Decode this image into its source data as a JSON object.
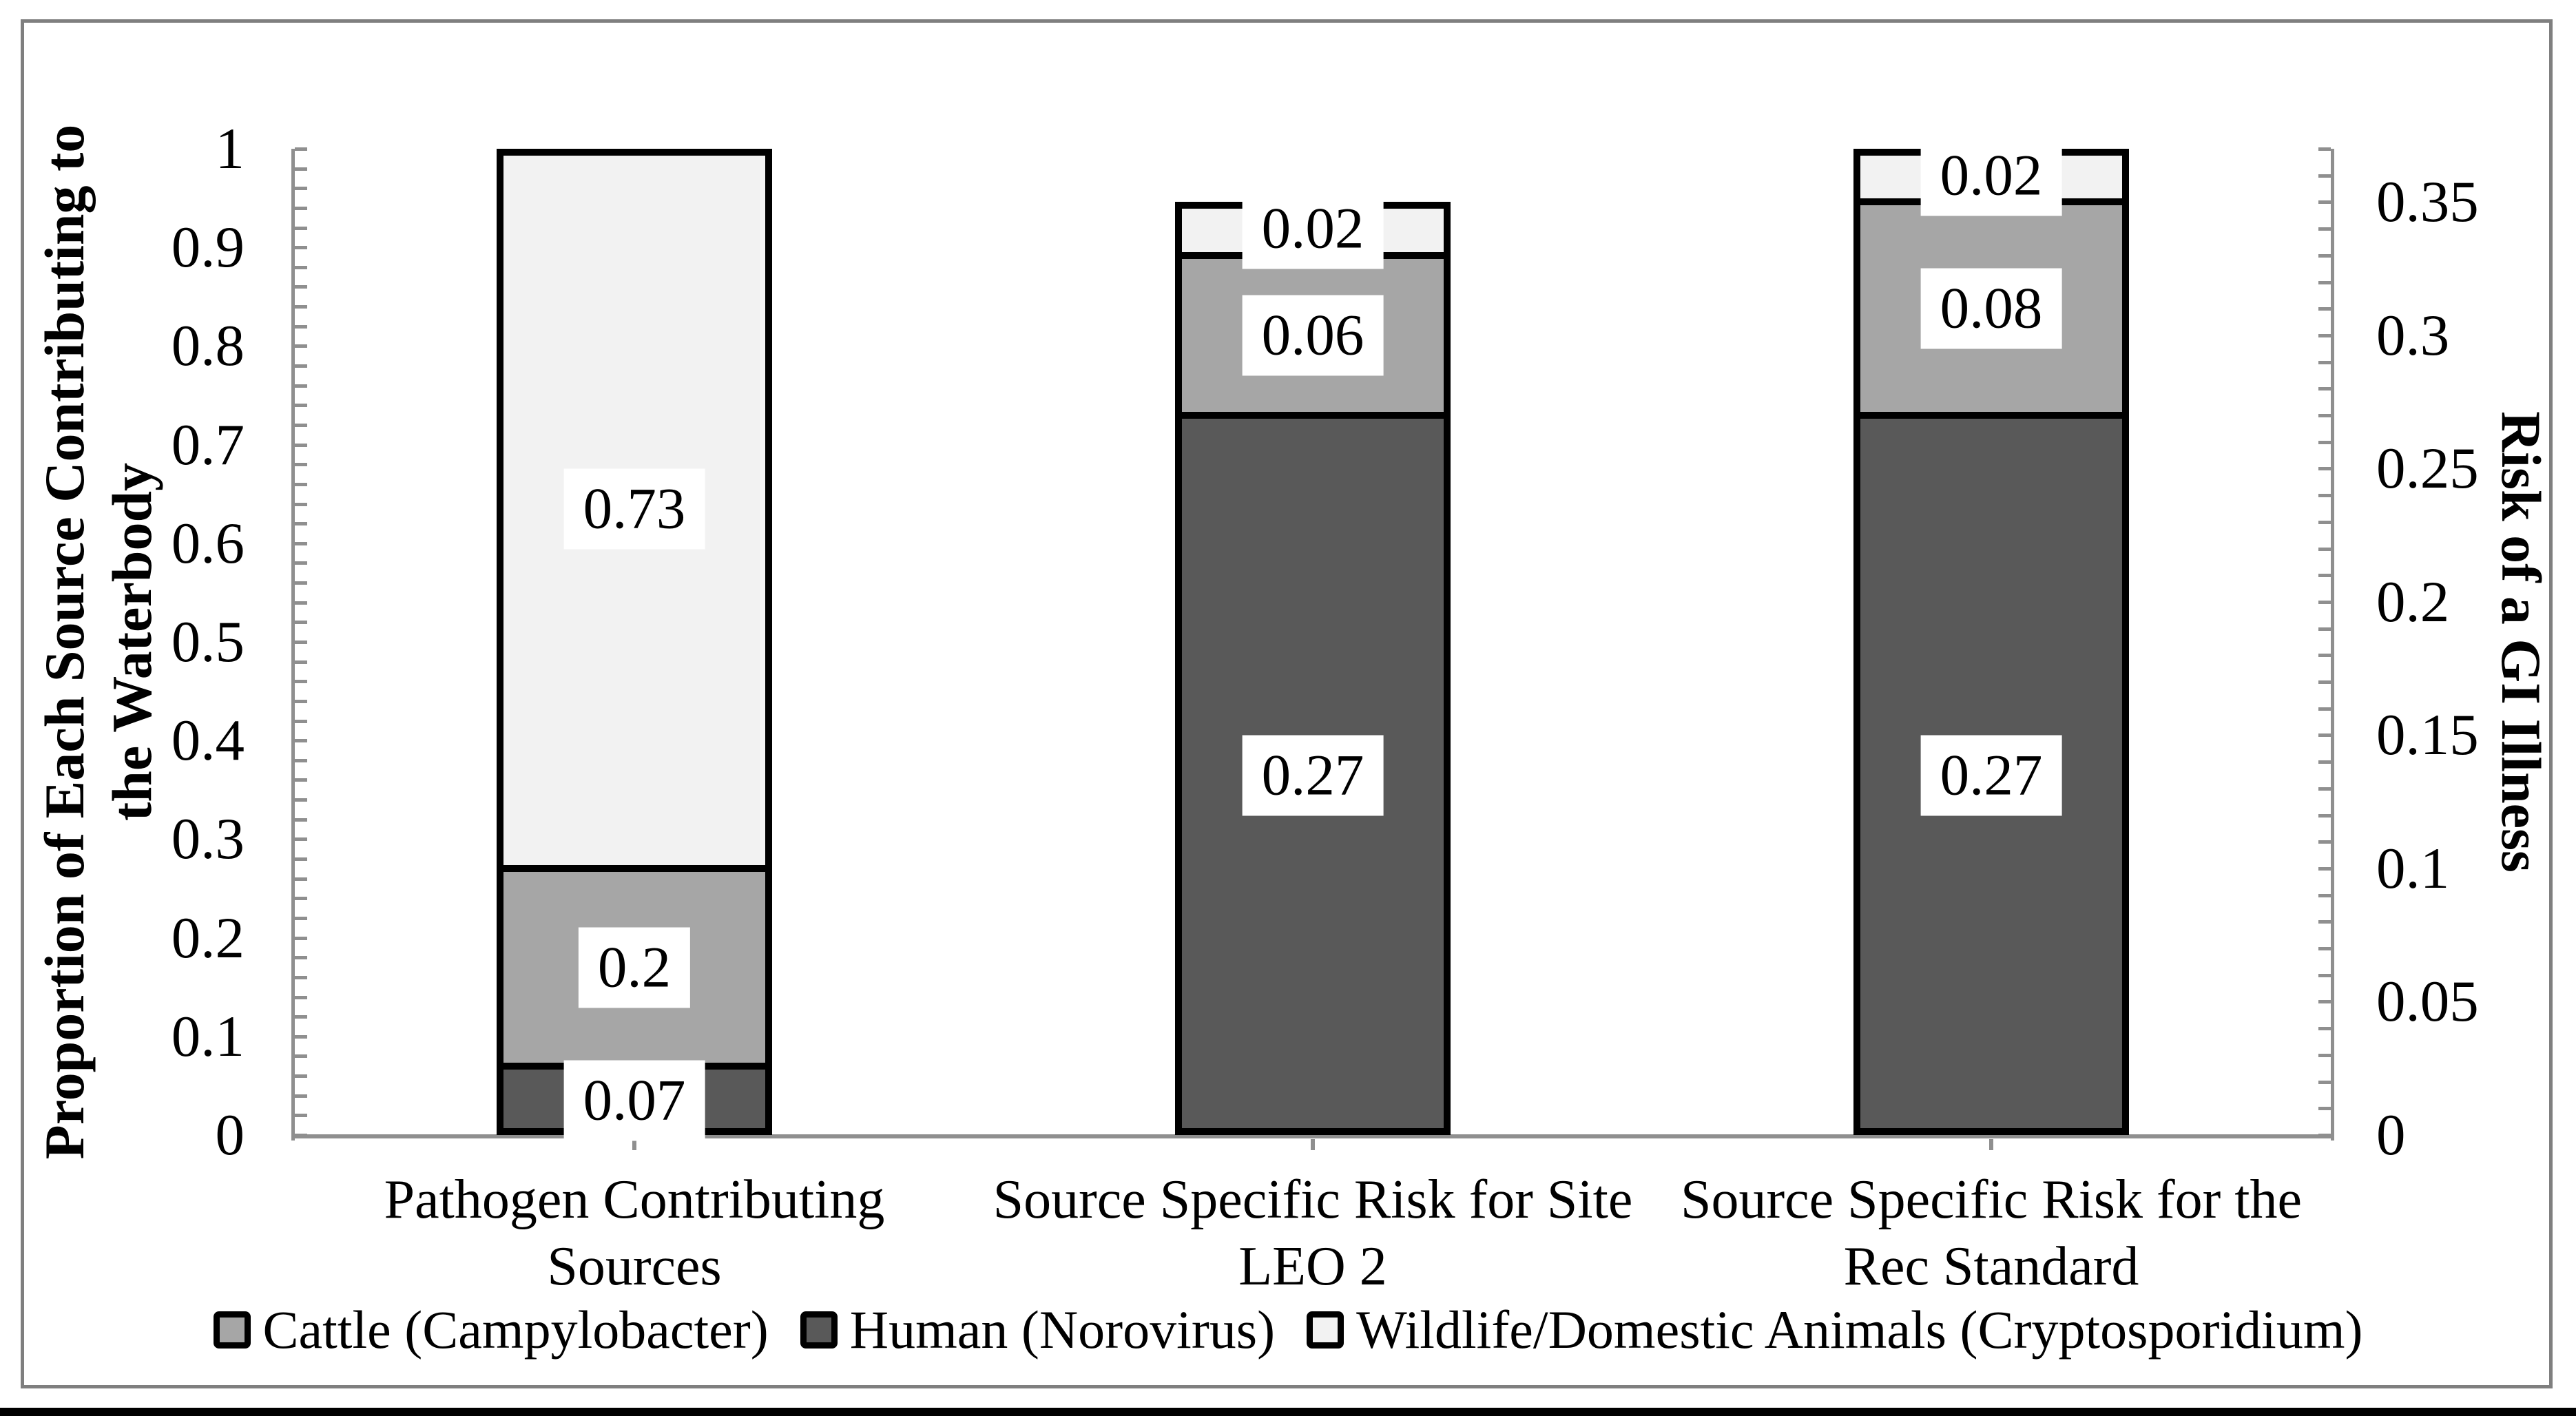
{
  "chart_data": {
    "type": "bar",
    "stacked": true,
    "dual_axis": true,
    "title": "",
    "categories": [
      "Pathogen Contributing Sources",
      "Source Specific Risk for Site LEO 2",
      "Source Specific Risk for the Rec Standard"
    ],
    "category_label_lines": [
      [
        "Pathogen Contributing",
        "Sources"
      ],
      [
        "Source Specific Risk for Site",
        "LEO 2"
      ],
      [
        "Source Specific Risk for the",
        "Rec Standard"
      ]
    ],
    "series": [
      {
        "name": "Cattle (Campylobacter)",
        "color": "#a6a6a6",
        "values": [
          0.2,
          0.06,
          0.08
        ]
      },
      {
        "name": "Human (Norovirus)",
        "color": "#595959",
        "values": [
          0.07,
          0.27,
          0.27
        ]
      },
      {
        "name": "Wildlife/Domestic Animals (Cryptosporidium)",
        "color": "#f2f2f2",
        "values": [
          0.73,
          0.02,
          0.02
        ]
      }
    ],
    "bars": [
      {
        "category": "Pathogen Contributing Sources",
        "axis": "left",
        "segments": [
          {
            "series": "Human (Norovirus)",
            "value": 0.07,
            "label": "0.07",
            "color": "#595959"
          },
          {
            "series": "Cattle (Campylobacter)",
            "value": 0.2,
            "label": "0.2",
            "color": "#a6a6a6"
          },
          {
            "series": "Wildlife/Domestic Animals (Cryptosporidium)",
            "value": 0.73,
            "label": "0.73",
            "color": "#f2f2f2"
          }
        ]
      },
      {
        "category": "Source Specific Risk for Site LEO 2",
        "axis": "right",
        "segments": [
          {
            "series": "Human (Norovirus)",
            "value": 0.27,
            "label": "0.27",
            "color": "#595959"
          },
          {
            "series": "Cattle (Campylobacter)",
            "value": 0.06,
            "label": "0.06",
            "color": "#a6a6a6"
          },
          {
            "series": "Wildlife/Domestic Animals (Cryptosporidium)",
            "value": 0.02,
            "label": "0.02",
            "color": "#f2f2f2"
          }
        ]
      },
      {
        "category": "Source Specific Risk for the Rec Standard",
        "axis": "right",
        "segments": [
          {
            "series": "Human (Norovirus)",
            "value": 0.27,
            "label": "0.27",
            "color": "#595959"
          },
          {
            "series": "Cattle (Campylobacter)",
            "value": 0.08,
            "label": "0.08",
            "color": "#a6a6a6"
          },
          {
            "series": "Wildlife/Domestic Animals (Cryptosporidium)",
            "value": 0.02,
            "label": "0.02",
            "color": "#f2f2f2"
          }
        ]
      }
    ],
    "left_axis": {
      "title_lines": [
        "Proportion of Each Source Contributing to",
        "the Waterbody"
      ],
      "title": "Proportion of Each Source Contributing to the Waterbody",
      "min": 0,
      "max": 1,
      "major_step": 0.1,
      "minor_step": 0.02,
      "ticks": [
        {
          "v": 1,
          "label": "1"
        },
        {
          "v": 0.9,
          "label": "0.9"
        },
        {
          "v": 0.8,
          "label": "0.8"
        },
        {
          "v": 0.7,
          "label": "0.7"
        },
        {
          "v": 0.6,
          "label": "0.6"
        },
        {
          "v": 0.5,
          "label": "0.5"
        },
        {
          "v": 0.4,
          "label": "0.4"
        },
        {
          "v": 0.3,
          "label": "0.3"
        },
        {
          "v": 0.2,
          "label": "0.2"
        },
        {
          "v": 0.1,
          "label": "0.1"
        },
        {
          "v": 0,
          "label": "0"
        }
      ]
    },
    "right_axis": {
      "title": "Risk of a GI Illness",
      "min": 0,
      "max": 0.37,
      "major_step": 0.05,
      "minor_step": 0.01,
      "ticks": [
        {
          "v": 0.35,
          "label": "0.35"
        },
        {
          "v": 0.3,
          "label": "0.3"
        },
        {
          "v": 0.25,
          "label": "0.25"
        },
        {
          "v": 0.2,
          "label": "0.2"
        },
        {
          "v": 0.15,
          "label": "0.15"
        },
        {
          "v": 0.1,
          "label": "0.1"
        },
        {
          "v": 0.05,
          "label": "0.05"
        },
        {
          "v": 0,
          "label": "0"
        }
      ]
    },
    "legend": {
      "position": "bottom",
      "items": [
        {
          "label": "Cattle (Campylobacter)",
          "color": "#a6a6a6"
        },
        {
          "label": "Human (Norovirus)",
          "color": "#595959"
        },
        {
          "label": "Wildlife/Domestic Animals (Cryptosporidium)",
          "color": "#f2f2f2"
        }
      ]
    },
    "grid": false,
    "colors": {
      "axis": "#8f8f8f",
      "frame": "#7f7f7f",
      "bar_border": "#000000",
      "label_box_bg": "#ffffff",
      "text": "#000000",
      "page_edge": "#000000"
    }
  }
}
